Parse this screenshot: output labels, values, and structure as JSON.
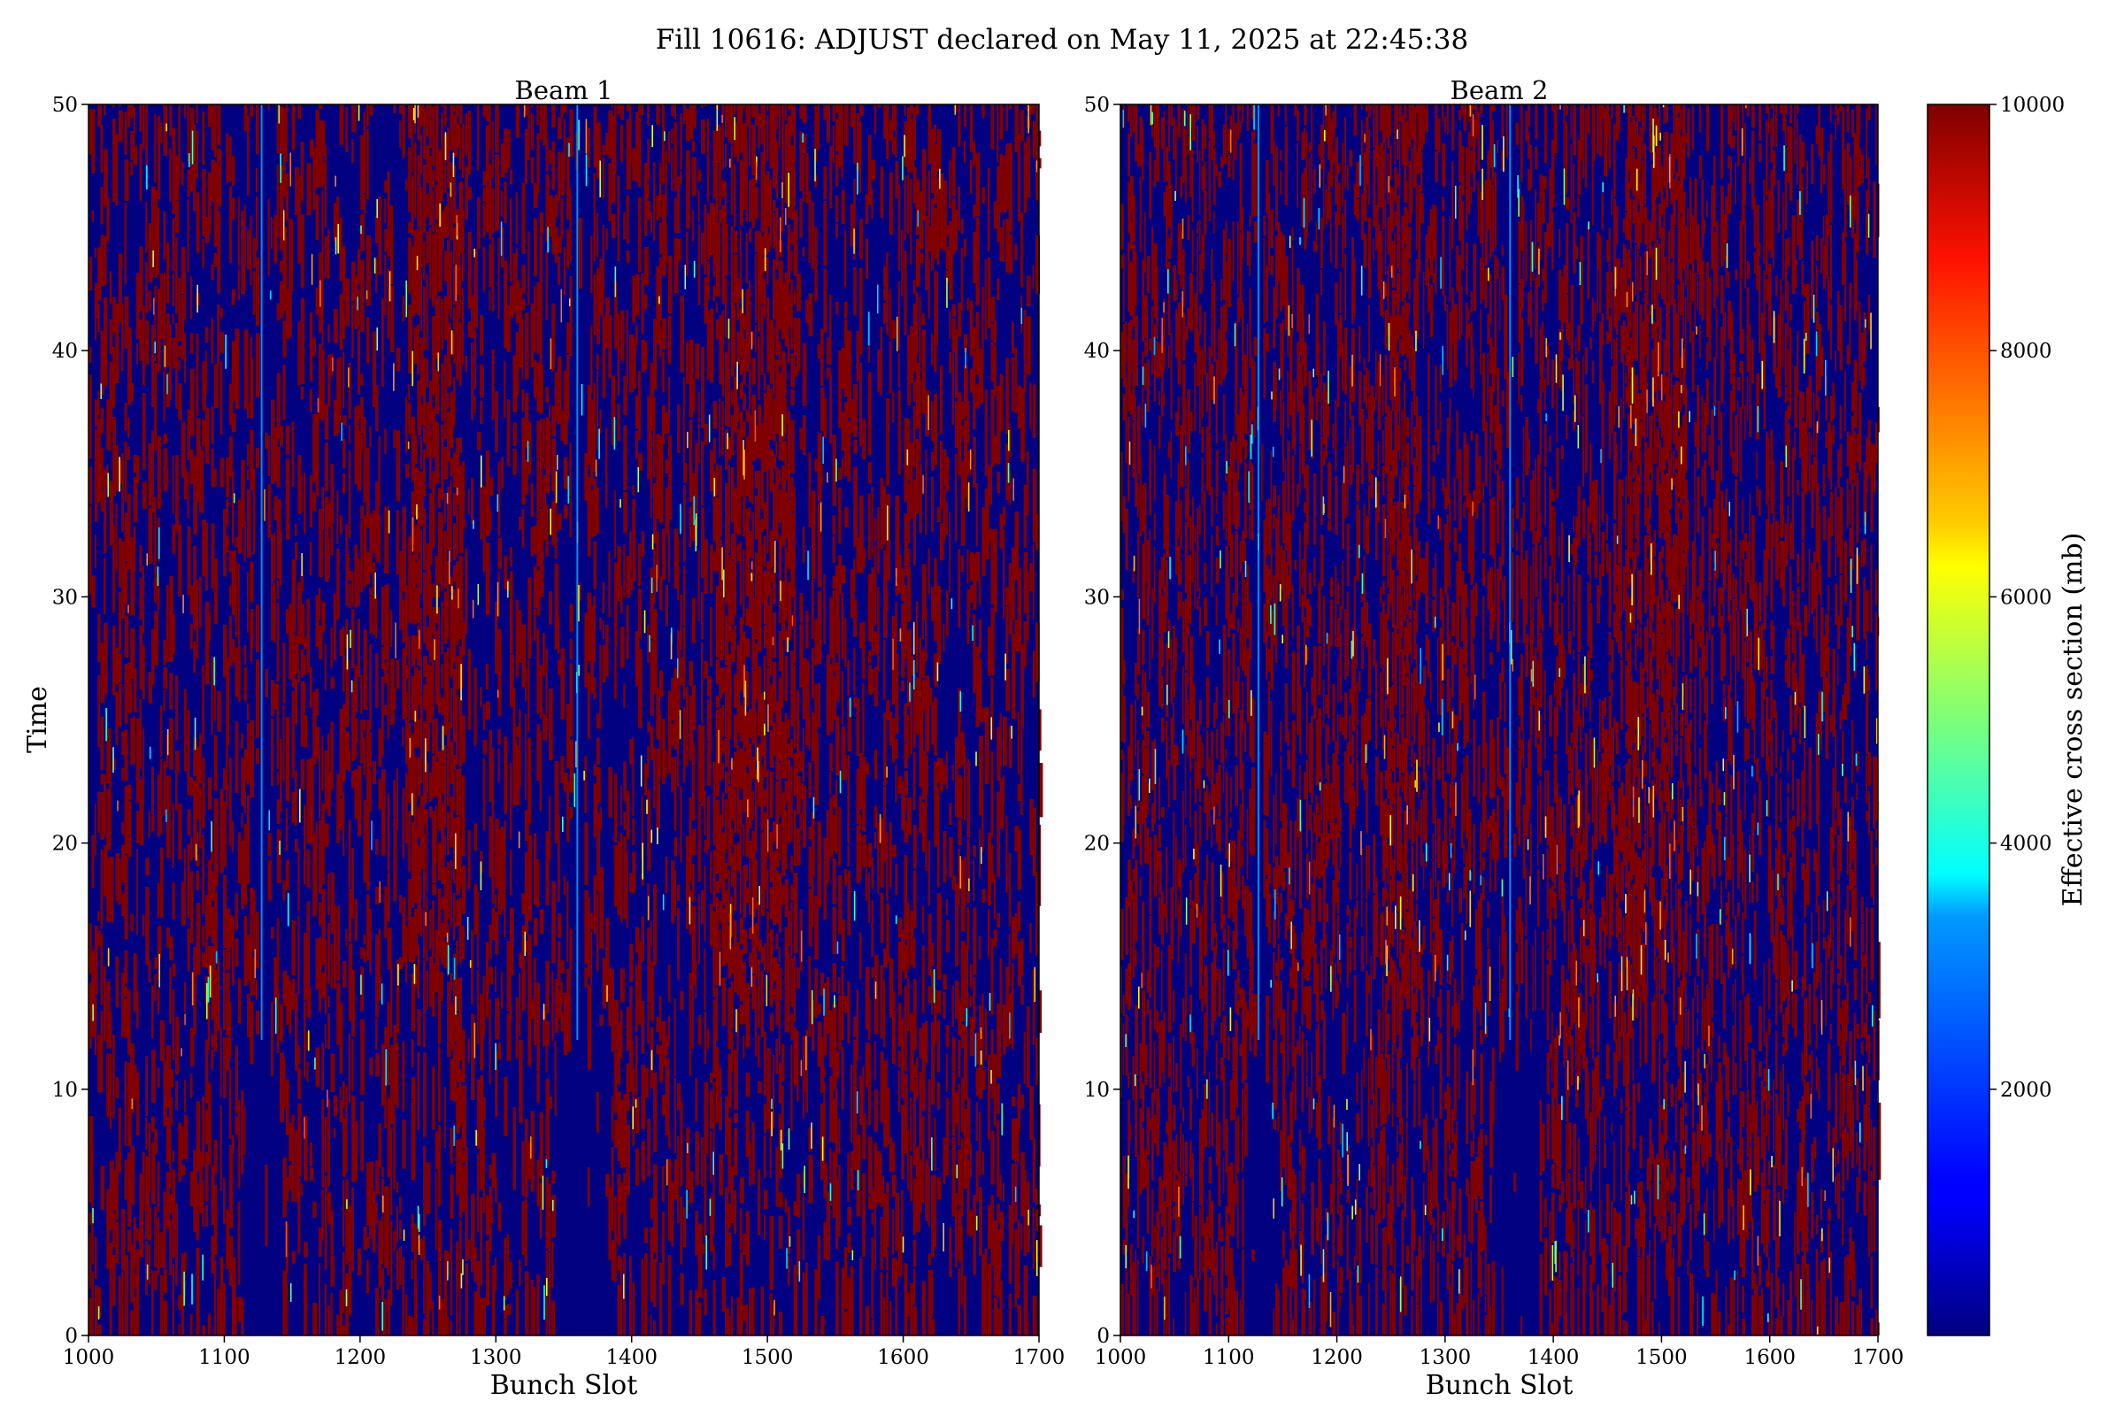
{
  "figure": {
    "title": "Fill 10616: ADJUST declared on May 11, 2025 at 22:45:38"
  },
  "chart_data": [
    {
      "type": "heatmap",
      "title": "Beam 1",
      "xlabel": "Bunch Slot",
      "ylabel": "Time",
      "xlim": [
        1000,
        1700
      ],
      "ylim": [
        0,
        50
      ],
      "x_ticks": [
        "1000",
        "1100",
        "1200",
        "1300",
        "1400",
        "1500",
        "1600",
        "1700"
      ],
      "y_ticks": [
        "0",
        "10",
        "20",
        "30",
        "40",
        "50"
      ],
      "colormap": "jet",
      "value_range": [
        0,
        10000
      ],
      "grid": false,
      "regions": [
        {
          "x_start": 1000,
          "x_end": 1700,
          "y_start": 0,
          "y_end": 50,
          "description": "dense alternating columns, roughly 50% high (~10000) and 50% low (~0)"
        },
        {
          "x_start": 1115,
          "x_end": 1140,
          "y_start": 0,
          "y_end": 12,
          "description": "uniform low (~0)"
        },
        {
          "x_start": 1345,
          "x_end": 1385,
          "y_start": 0,
          "y_end": 12,
          "description": "uniform low (~0)"
        },
        {
          "x_start": 1125,
          "x_end": 1130,
          "y_start": 12,
          "y_end": 50,
          "description": "narrow low band with ~3000 streak"
        },
        {
          "x_start": 1355,
          "x_end": 1365,
          "y_start": 12,
          "y_end": 50,
          "description": "narrow low band with ~3000 streak"
        },
        {
          "x_start": 1235,
          "x_end": 1275,
          "y_start": 15,
          "y_end": 50,
          "description": "mostly high (~10000) with ~6000-8000 streaks"
        },
        {
          "x_start": 1460,
          "x_end": 1520,
          "y_start": 13,
          "y_end": 50,
          "description": "mostly high (~10000) with ~6000-8000 streaks"
        }
      ]
    },
    {
      "type": "heatmap",
      "title": "Beam 2",
      "xlabel": "Bunch Slot",
      "ylabel": "",
      "xlim": [
        1000,
        1700
      ],
      "ylim": [
        0,
        50
      ],
      "x_ticks": [
        "1000",
        "1100",
        "1200",
        "1300",
        "1400",
        "1500",
        "1600",
        "1700"
      ],
      "y_ticks": [
        "0",
        "10",
        "20",
        "30",
        "40",
        "50"
      ],
      "colormap": "jet",
      "value_range": [
        0,
        10000
      ],
      "grid": false,
      "regions": [
        {
          "x_start": 1000,
          "x_end": 1700,
          "y_start": 0,
          "y_end": 50,
          "description": "dense alternating columns, roughly 50% high (~10000) and 50% low (~0)"
        },
        {
          "x_start": 1115,
          "x_end": 1140,
          "y_start": 0,
          "y_end": 12,
          "description": "uniform low (~0)"
        },
        {
          "x_start": 1345,
          "x_end": 1385,
          "y_start": 0,
          "y_end": 12,
          "description": "uniform low (~0)"
        },
        {
          "x_start": 1125,
          "x_end": 1130,
          "y_start": 12,
          "y_end": 50,
          "description": "narrow low band with ~3000 streak"
        },
        {
          "x_start": 1355,
          "x_end": 1365,
          "y_start": 12,
          "y_end": 50,
          "description": "narrow low band with ~3000 streak"
        },
        {
          "x_start": 1240,
          "x_end": 1275,
          "y_start": 13,
          "y_end": 50,
          "description": "mostly high (~10000)"
        },
        {
          "x_start": 1465,
          "x_end": 1520,
          "y_start": 13,
          "y_end": 50,
          "description": "mostly high (~10000)"
        }
      ]
    }
  ],
  "colorbar": {
    "label": "Effective cross section (mb)",
    "ticks": [
      "2000",
      "4000",
      "6000",
      "8000",
      "10000"
    ],
    "tick_values": [
      2000,
      4000,
      6000,
      8000,
      10000
    ],
    "range": [
      0,
      10000
    ],
    "colormap": "jet"
  },
  "colors": {
    "high": "#800000",
    "low": "#00008f",
    "mid_cyan": "#00ffff",
    "mid_yellow": "#ffff00"
  }
}
